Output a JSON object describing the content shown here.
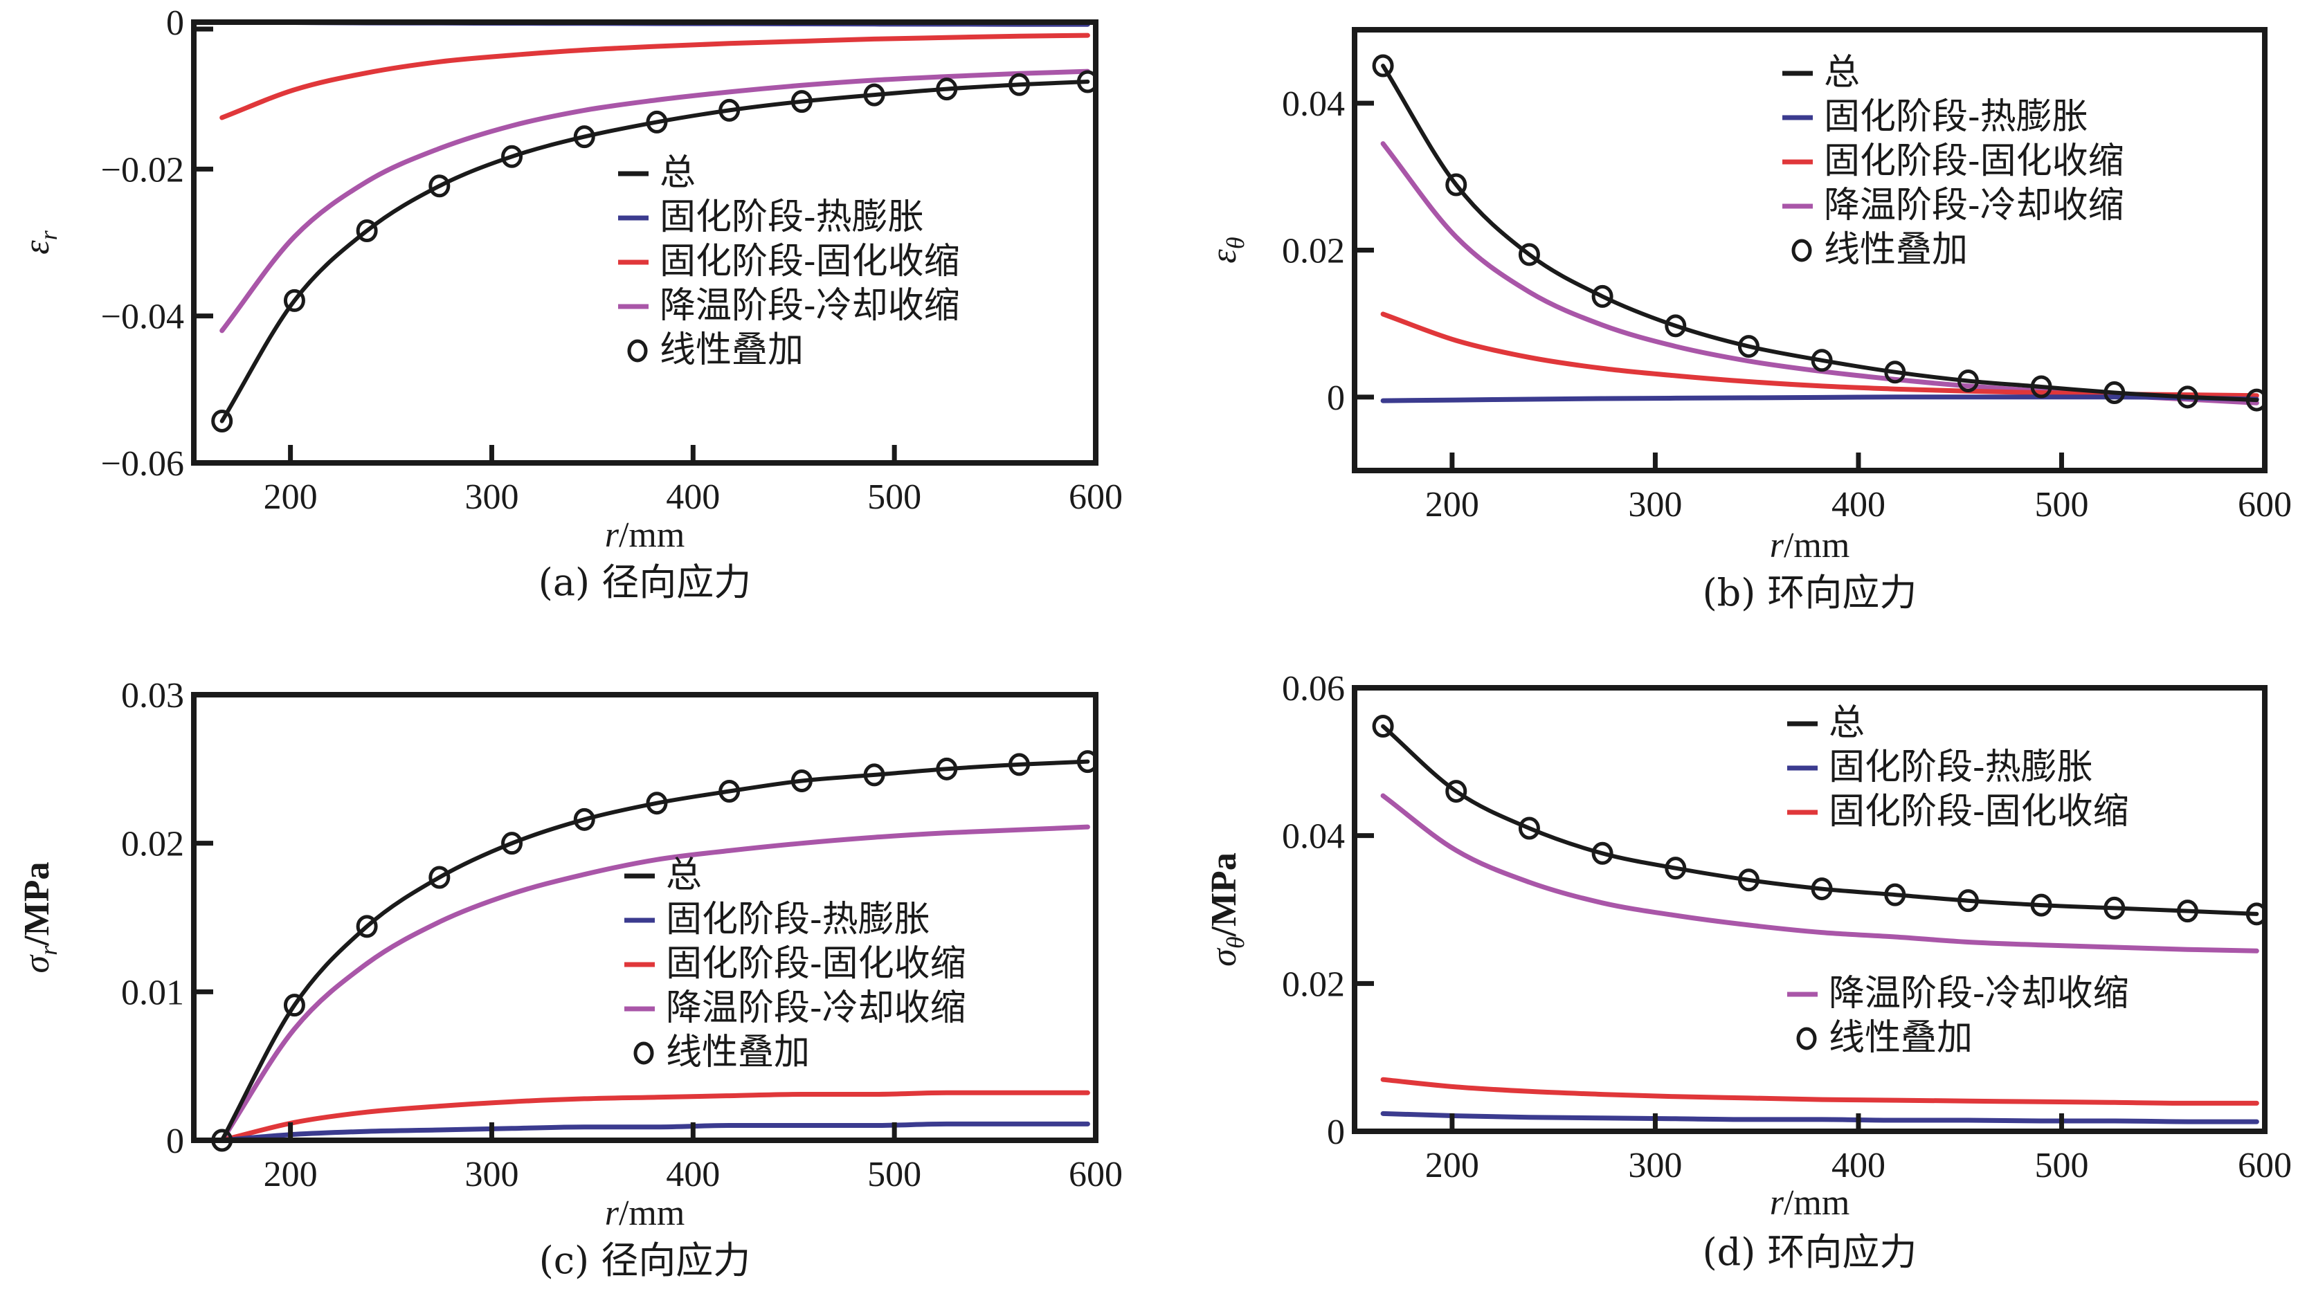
{
  "colors": {
    "total": "#1a1a1a",
    "thermal": "#3b3b8f",
    "cure": "#e0373a",
    "cooling": "#a956a8",
    "axis": "#1a1a1a"
  },
  "legend_labels": {
    "total": "总",
    "thermal": "固化阶段-热膨胀",
    "cure": "固化阶段-固化收缩",
    "cooling": "降温阶段-冷却收缩",
    "superposition": "线性叠加"
  },
  "chart_data": [
    {
      "id": "a",
      "type": "line",
      "caption": "(a) 径向应力",
      "xlabel_var": "r",
      "xlabel_unit": "/mm",
      "ylabel_var": "ε",
      "ylabel_sub": "r",
      "ylabel_unit": "",
      "xlim": [
        152,
        600
      ],
      "ylim": [
        -0.06,
        0.0
      ],
      "xticks": [
        200,
        300,
        400,
        500,
        600
      ],
      "xtick_labels": [
        "200",
        "300",
        "400",
        "500",
        "600"
      ],
      "yticks": [
        0,
        -0.02,
        -0.04,
        -0.06
      ],
      "ytick_labels": [
        "0",
        "−0.02",
        "−0.04",
        "−0.06"
      ],
      "grid": false,
      "legend_placement": "center-right",
      "x": [
        166,
        202,
        238,
        274,
        310,
        346,
        382,
        418,
        454,
        490,
        526,
        562,
        596
      ],
      "series": [
        {
          "key": "total",
          "name": "总",
          "style": "line",
          "values": [
            -0.0543,
            -0.0379,
            -0.0284,
            -0.0223,
            -0.0183,
            -0.0156,
            -0.0136,
            -0.012,
            -0.0108,
            -0.0099,
            -0.0091,
            -0.0085,
            -0.0081
          ]
        },
        {
          "key": "thermal",
          "name": "固化阶段-热膨胀",
          "style": "line",
          "values": [
            0.0,
            -5e-05,
            -0.0001,
            -0.00012,
            -0.00015,
            -0.00017,
            -0.0002,
            -0.00022,
            -0.00024,
            -0.00026,
            -0.00028,
            -0.0003,
            -0.0003
          ]
        },
        {
          "key": "cure",
          "name": "固化阶段-固化收缩",
          "style": "line",
          "values": [
            -0.013,
            -0.0092,
            -0.0069,
            -0.0054,
            -0.0045,
            -0.0038,
            -0.0033,
            -0.0029,
            -0.0026,
            -0.0023,
            -0.0021,
            -0.0019,
            -0.0018
          ]
        },
        {
          "key": "cooling",
          "name": "降温阶段-冷却收缩",
          "style": "line",
          "values": [
            -0.042,
            -0.0292,
            -0.0217,
            -0.0172,
            -0.0141,
            -0.012,
            -0.0106,
            -0.0095,
            -0.0086,
            -0.0079,
            -0.0074,
            -0.007,
            -0.0067
          ]
        },
        {
          "key": "superposition",
          "name": "线性叠加",
          "style": "marker",
          "values": [
            -0.0543,
            -0.0379,
            -0.0284,
            -0.0223,
            -0.0183,
            -0.0156,
            -0.0136,
            -0.012,
            -0.0108,
            -0.0099,
            -0.0091,
            -0.0085,
            -0.0081
          ]
        }
      ]
    },
    {
      "id": "b",
      "type": "line",
      "caption": "(b) 环向应力",
      "xlabel_var": "r",
      "xlabel_unit": "/mm",
      "ylabel_var": "ε",
      "ylabel_sub": "θ",
      "ylabel_unit": "",
      "xlim": [
        152,
        600
      ],
      "ylim": [
        -0.01,
        0.05
      ],
      "xticks": [
        200,
        300,
        400,
        500,
        600
      ],
      "xtick_labels": [
        "200",
        "300",
        "400",
        "500",
        "600"
      ],
      "yticks": [
        0,
        0.02,
        0.04
      ],
      "ytick_labels": [
        "0",
        "0.02",
        "0.04"
      ],
      "grid": false,
      "legend_placement": "top-right",
      "x": [
        166,
        202,
        238,
        274,
        310,
        346,
        382,
        418,
        454,
        490,
        526,
        562,
        596
      ],
      "series": [
        {
          "key": "total",
          "name": "总",
          "style": "line",
          "values": [
            0.0451,
            0.0289,
            0.0194,
            0.0137,
            0.0097,
            0.0069,
            0.005,
            0.0034,
            0.0022,
            0.0014,
            0.0006,
            0.0,
            -0.0004
          ]
        },
        {
          "key": "thermal",
          "name": "固化阶段-热膨胀",
          "style": "line",
          "values": [
            -0.0005,
            -0.0004,
            -0.0003,
            -0.0002,
            -0.00015,
            -0.0001,
            -5e-05,
            0.0,
            0.0,
            0.0,
            0.0,
            -0.0001,
            -0.0003
          ]
        },
        {
          "key": "cure",
          "name": "固化阶段-固化收缩",
          "style": "line",
          "values": [
            0.0113,
            0.0077,
            0.0054,
            0.0039,
            0.0029,
            0.0021,
            0.0015,
            0.0011,
            0.0008,
            0.0006,
            0.0004,
            0.0003,
            0.0002
          ]
        },
        {
          "key": "cooling",
          "name": "降温阶段-冷却收缩",
          "style": "line",
          "values": [
            0.0345,
            0.0218,
            0.0143,
            0.0098,
            0.0069,
            0.0049,
            0.0035,
            0.0024,
            0.0015,
            0.0008,
            0.0002,
            -0.0003,
            -0.0008
          ]
        },
        {
          "key": "superposition",
          "name": "线性叠加",
          "style": "marker",
          "values": [
            0.0451,
            0.0289,
            0.0194,
            0.0137,
            0.0097,
            0.0069,
            0.005,
            0.0034,
            0.0022,
            0.0014,
            0.0006,
            0.0,
            -0.0004
          ]
        }
      ]
    },
    {
      "id": "c",
      "type": "line",
      "caption": "(c) 径向应力",
      "xlabel_var": "r",
      "xlabel_unit": "/mm",
      "ylabel_var": "σ",
      "ylabel_sub": "r",
      "ylabel_unit": "/MPa",
      "xlim": [
        152,
        600
      ],
      "ylim": [
        0,
        0.03
      ],
      "xticks": [
        200,
        300,
        400,
        500,
        600
      ],
      "xtick_labels": [
        "200",
        "300",
        "400",
        "500",
        "600"
      ],
      "yticks": [
        0,
        0.01,
        0.02,
        0.03
      ],
      "ytick_labels": [
        "0",
        "0.01",
        "0.02",
        "0.03"
      ],
      "grid": false,
      "legend_placement": "center-right",
      "x": [
        166,
        202,
        238,
        274,
        310,
        346,
        382,
        418,
        454,
        490,
        526,
        562,
        596
      ],
      "series": [
        {
          "key": "total",
          "name": "总",
          "style": "line",
          "values": [
            0.0,
            0.0091,
            0.0144,
            0.0177,
            0.02,
            0.0216,
            0.0227,
            0.0235,
            0.0242,
            0.0246,
            0.025,
            0.0253,
            0.0255
          ]
        },
        {
          "key": "thermal",
          "name": "固化阶段-热膨胀",
          "style": "line",
          "values": [
            0.0,
            0.0004,
            0.0006,
            0.0007,
            0.0008,
            0.0009,
            0.0009,
            0.001,
            0.001,
            0.001,
            0.0011,
            0.0011,
            0.0011
          ]
        },
        {
          "key": "cure",
          "name": "固化阶段-固化收缩",
          "style": "line",
          "values": [
            0.0,
            0.0012,
            0.0019,
            0.0023,
            0.0026,
            0.0028,
            0.0029,
            0.003,
            0.0031,
            0.0031,
            0.0032,
            0.0032,
            0.0032
          ]
        },
        {
          "key": "cooling",
          "name": "降温阶段-冷却收缩",
          "style": "line",
          "values": [
            0.0,
            0.0075,
            0.0119,
            0.0147,
            0.0166,
            0.0179,
            0.0189,
            0.0195,
            0.02,
            0.0204,
            0.0207,
            0.0209,
            0.0211
          ]
        },
        {
          "key": "superposition",
          "name": "线性叠加",
          "style": "marker",
          "values": [
            0.0,
            0.0091,
            0.0144,
            0.0177,
            0.02,
            0.0216,
            0.0227,
            0.0235,
            0.0242,
            0.0246,
            0.025,
            0.0253,
            0.0255
          ]
        }
      ]
    },
    {
      "id": "d",
      "type": "line",
      "caption": "(d) 环向应力",
      "xlabel_var": "r",
      "xlabel_unit": "/mm",
      "ylabel_var": "σ",
      "ylabel_sub": "θ",
      "ylabel_unit": "/MPa",
      "xlim": [
        152,
        600
      ],
      "ylim": [
        0,
        0.06
      ],
      "xticks": [
        200,
        300,
        400,
        500,
        600
      ],
      "xtick_labels": [
        "200",
        "300",
        "400",
        "500",
        "600"
      ],
      "yticks": [
        0,
        0.02,
        0.04,
        0.06
      ],
      "ytick_labels": [
        "0",
        "0.02",
        "0.04",
        "0.06"
      ],
      "grid": false,
      "legend_placement": "right (split)",
      "x": [
        166,
        202,
        238,
        274,
        310,
        346,
        382,
        418,
        454,
        490,
        526,
        562,
        596
      ],
      "series": [
        {
          "key": "total",
          "name": "总",
          "style": "line",
          "values": [
            0.0548,
            0.046,
            0.041,
            0.0376,
            0.0356,
            0.034,
            0.0328,
            0.032,
            0.0312,
            0.0306,
            0.0302,
            0.0298,
            0.0294
          ]
        },
        {
          "key": "thermal",
          "name": "固化阶段-热膨胀",
          "style": "line",
          "values": [
            0.0024,
            0.0021,
            0.0019,
            0.0018,
            0.0017,
            0.0016,
            0.0016,
            0.0015,
            0.0015,
            0.0014,
            0.0014,
            0.0013,
            0.0013
          ]
        },
        {
          "key": "cure",
          "name": "固化阶段-固化收缩",
          "style": "line",
          "values": [
            0.007,
            0.006,
            0.0054,
            0.005,
            0.0047,
            0.0045,
            0.0043,
            0.0042,
            0.0041,
            0.004,
            0.0039,
            0.0038,
            0.0038
          ]
        },
        {
          "key": "cooling",
          "name": "降温阶段-冷却收缩",
          "style": "line",
          "values": [
            0.0454,
            0.038,
            0.0337,
            0.0309,
            0.0292,
            0.0279,
            0.0269,
            0.0263,
            0.0256,
            0.0252,
            0.0249,
            0.0246,
            0.0244
          ]
        },
        {
          "key": "superposition",
          "name": "线性叠加",
          "style": "marker",
          "values": [
            0.0548,
            0.046,
            0.041,
            0.0376,
            0.0356,
            0.034,
            0.0328,
            0.032,
            0.0312,
            0.0306,
            0.0302,
            0.0298,
            0.0294
          ]
        }
      ]
    }
  ]
}
